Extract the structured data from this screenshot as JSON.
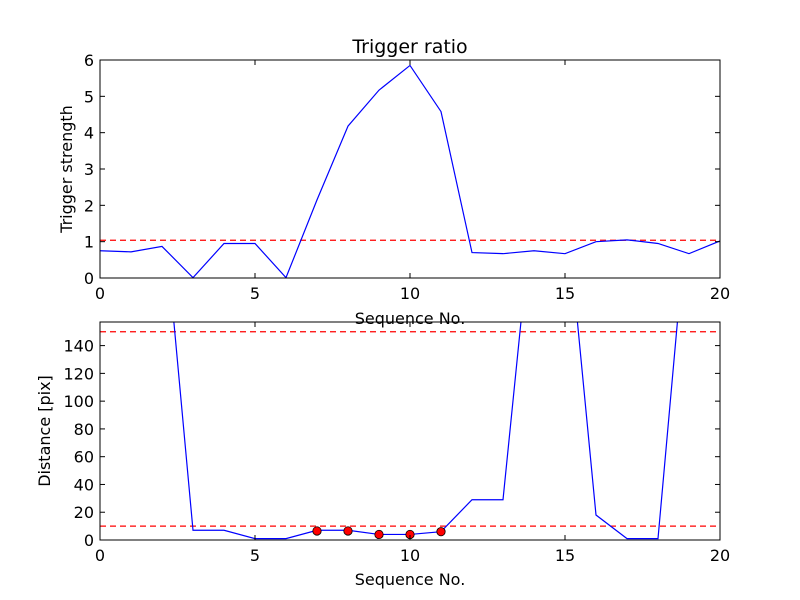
{
  "chart_data": [
    {
      "type": "line",
      "title": "Trigger ratio",
      "xlabel": "Sequence No.",
      "ylabel": "Trigger strength",
      "xlim": [
        0,
        20
      ],
      "ylim": [
        0,
        6
      ],
      "xticks": [
        0,
        5,
        10,
        15,
        20
      ],
      "yticks": [
        0,
        1,
        2,
        3,
        4,
        5,
        6
      ],
      "grid": false,
      "series": [
        {
          "color": "#0000ff",
          "x": [
            0,
            1,
            2,
            3,
            4,
            5,
            6,
            7,
            8,
            9,
            10,
            11,
            12,
            13,
            14,
            15,
            16,
            17,
            18,
            19,
            20
          ],
          "y": [
            0.75,
            0.72,
            0.87,
            0.01,
            0.95,
            0.95,
            0.01,
            2.15,
            4.18,
            5.17,
            5.85,
            4.58,
            0.7,
            0.67,
            0.75,
            0.67,
            1.0,
            1.05,
            0.95,
            0.67,
            1.02
          ]
        }
      ],
      "hlines": [
        {
          "y": 1.04,
          "color": "#ff0000",
          "style": "dashed"
        }
      ]
    },
    {
      "type": "line",
      "title": "",
      "xlabel": "Sequence No.",
      "ylabel": "Distance [pix]",
      "xlim": [
        0,
        20
      ],
      "ylim": [
        0,
        157
      ],
      "xticks": [
        0,
        5,
        10,
        15,
        20
      ],
      "yticks": [
        0,
        20,
        40,
        60,
        80,
        100,
        120,
        140
      ],
      "grid": false,
      "series": [
        {
          "color": "#0000ff",
          "x": [
            2,
            3,
            4,
            5,
            6,
            7,
            8,
            9,
            10,
            11,
            12,
            13,
            14,
            15,
            16,
            17,
            18,
            19
          ],
          "y": [
            250,
            7,
            7,
            1,
            1,
            7,
            7,
            4,
            4,
            6,
            29,
            29,
            250,
            250,
            18,
            1,
            1,
            250
          ]
        }
      ],
      "markers": {
        "color": "#ff0000",
        "x": [
          7,
          8,
          9,
          10,
          11
        ],
        "y": [
          6.5,
          6.5,
          4,
          4,
          6
        ]
      },
      "hlines": [
        {
          "y": 150,
          "color": "#ff0000",
          "style": "dashed"
        },
        {
          "y": 10,
          "color": "#ff0000",
          "style": "dashed"
        }
      ]
    }
  ]
}
